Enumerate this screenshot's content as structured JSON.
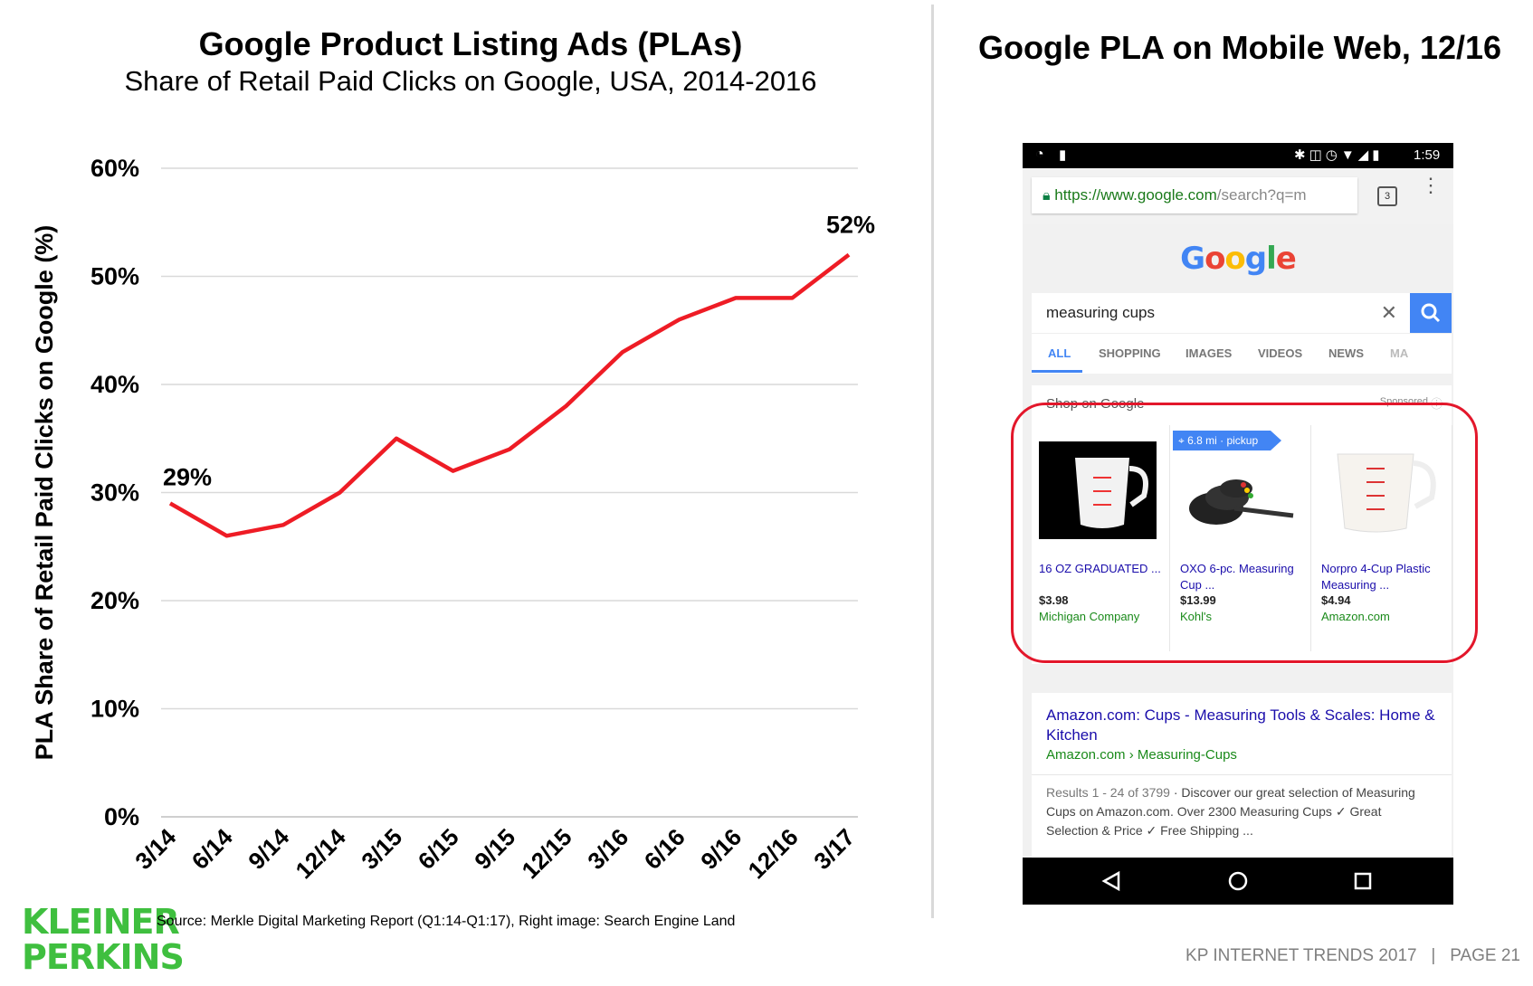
{
  "left_panel": {
    "title": "Google Product Listing Ads (PLAs)",
    "subtitle": "Share of Retail Paid Clicks on Google, USA, 2014-2016"
  },
  "chart_data": {
    "type": "line",
    "title": "Google Product Listing Ads (PLAs)",
    "subtitle": "Share of Retail Paid Clicks on Google, USA, 2014-2016",
    "xlabel": "",
    "ylabel": "PLA Share of Retail Paid Clicks on Google (%)",
    "categories": [
      "3/14",
      "6/14",
      "9/14",
      "12/14",
      "3/15",
      "6/15",
      "9/15",
      "12/15",
      "3/16",
      "6/16",
      "9/16",
      "12/16",
      "3/17"
    ],
    "series": [
      {
        "values": [
          29,
          26,
          27,
          30,
          35,
          32,
          34,
          38,
          43,
          46,
          48,
          48,
          52
        ],
        "color": "#ee1c25"
      }
    ],
    "ylim": [
      0,
      60
    ],
    "yticks": [
      "0%",
      "10%",
      "20%",
      "30%",
      "40%",
      "50%",
      "60%"
    ],
    "grid": true,
    "annotations": [
      {
        "category": "3/14",
        "text": "29%"
      },
      {
        "category": "3/17",
        "text": "52%"
      }
    ]
  },
  "right_panel": {
    "title": "Google PLA on Mobile Web, 12/16"
  },
  "phone": {
    "time": "1:59",
    "url_host": "https://www.google.com",
    "url_path": "/search?q=m",
    "tab_count": "3",
    "google_logo": "Google",
    "search_query": "measuring cups",
    "tabs": [
      "ALL",
      "SHOPPING",
      "IMAGES",
      "VIDEOS",
      "NEWS",
      "MA"
    ],
    "shop_heading": "Shop on Google",
    "sponsored": "Sponsored",
    "pickup_badge": "6.8 mi · pickup",
    "products": [
      {
        "name": "16 OZ GRADUATED ...",
        "price": "$3.98",
        "seller": "Michigan Company"
      },
      {
        "name": "OXO 6-pc. Measuring Cup ...",
        "price": "$13.99",
        "seller": "Kohl's"
      },
      {
        "name": "Norpro 4-Cup Plastic Measuring ...",
        "price": "$4.94",
        "seller": "Amazon.com"
      }
    ],
    "result": {
      "title": "Amazon.com: Cups - Measuring Tools & Scales: Home & Kitchen",
      "breadcrumb": "Amazon.com › Measuring-Cups",
      "snippet_meta": "Results 1 - 24 of 3799",
      "snippet": " · Discover our great selection of Measuring Cups on Amazon.com. Over 2300 Measuring Cups ✓ Great Selection & Price ✓ Free Shipping ..."
    }
  },
  "source": "Source: Merkle Digital Marketing Report (Q1:14-Q1:17), Right image: Search Engine Land",
  "logo": {
    "line1": "KLEINER",
    "line2": "PERKINS"
  },
  "footer": "KP INTERNET TRENDS 2017   |   PAGE 21"
}
